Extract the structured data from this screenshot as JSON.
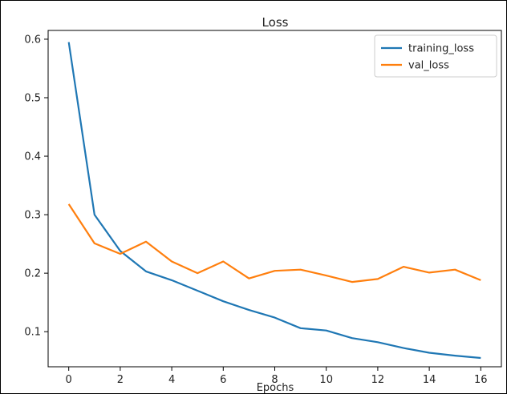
{
  "chart_data": {
    "type": "line",
    "title": "Loss",
    "xlabel": "Epochs",
    "ylabel": "",
    "x": [
      0,
      1,
      2,
      3,
      4,
      5,
      6,
      7,
      8,
      9,
      10,
      11,
      12,
      13,
      14,
      15,
      16
    ],
    "xticks": [
      0,
      2,
      4,
      6,
      8,
      10,
      12,
      14,
      16
    ],
    "yticks": [
      0.1,
      0.2,
      0.3,
      0.4,
      0.5,
      0.6
    ],
    "xlim": [
      -0.8,
      16.8
    ],
    "ylim": [
      0.04,
      0.615
    ],
    "grid": false,
    "legend_position": "top-right",
    "series": [
      {
        "name": "training_loss",
        "color": "#1f77b4",
        "values": [
          0.595,
          0.3,
          0.238,
          0.203,
          0.188,
          0.17,
          0.152,
          0.137,
          0.124,
          0.106,
          0.102,
          0.089,
          0.082,
          0.072,
          0.064,
          0.059,
          0.055
        ]
      },
      {
        "name": "val_loss",
        "color": "#ff7f0e",
        "values": [
          0.318,
          0.251,
          0.233,
          0.254,
          0.22,
          0.2,
          0.22,
          0.191,
          0.204,
          0.206,
          0.196,
          0.185,
          0.19,
          0.211,
          0.201,
          0.206,
          0.188
        ]
      }
    ]
  }
}
